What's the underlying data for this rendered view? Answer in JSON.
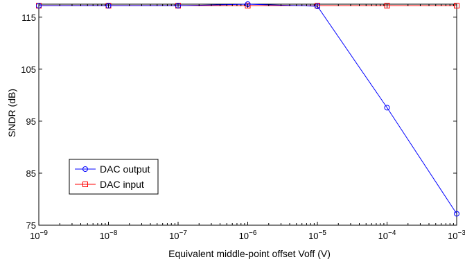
{
  "chart_data": {
    "type": "line",
    "xscale": "log",
    "xlabel": "Equivalent middle-point offset Voff (V)",
    "ylabel": "SNDR (dB)",
    "xlim": [
      1e-09,
      0.001
    ],
    "ylim": [
      75,
      117.5
    ],
    "x": [
      1e-09,
      1e-08,
      1e-07,
      1e-06,
      1e-05,
      0.0001,
      0.001
    ],
    "x_tick_values": [
      1e-09,
      1e-08,
      1e-07,
      1e-06,
      1e-05,
      0.0001,
      0.001
    ],
    "x_tick_exponents": [
      "-9",
      "-8",
      "-7",
      "-6",
      "-5",
      "-4",
      "-3"
    ],
    "x_tick_base": "10",
    "y_ticks": [
      75,
      85,
      95,
      105,
      115
    ],
    "y_tick_labels": [
      "75",
      "85",
      "95",
      "105",
      "115"
    ],
    "grid": false,
    "legend_position": "lower-left",
    "series": [
      {
        "name": "DAC output",
        "color": "#0000ff",
        "marker": "circle",
        "values": [
          117.2,
          117.2,
          117.2,
          117.5,
          117.1,
          97.6,
          77.2
        ]
      },
      {
        "name": "DAC input",
        "color": "#ff0000",
        "marker": "square",
        "values": [
          117.2,
          117.2,
          117.2,
          117.2,
          117.2,
          117.2,
          117.2
        ]
      }
    ]
  }
}
